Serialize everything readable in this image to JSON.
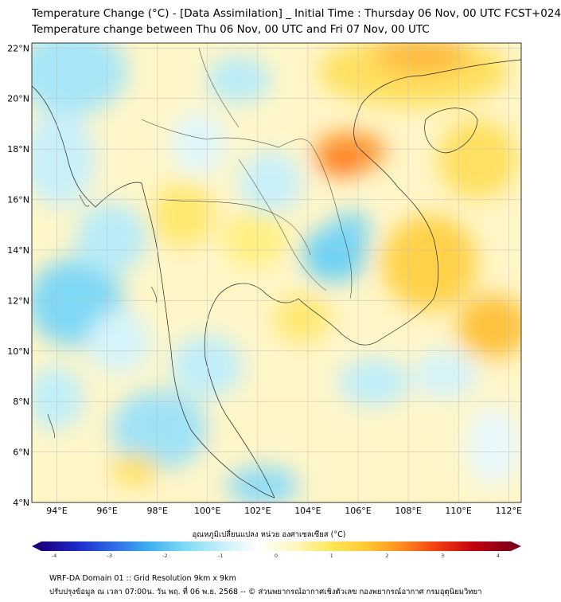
{
  "title": {
    "line1": "Temperature Change (°C) - [Data Assimilation] _ Initial Time : Thursday 06 Nov, 00 UTC FCST+024",
    "line2": "Temperature change between Thu 06 Nov, 00 UTC and Fri 07 Nov, 00 UTC"
  },
  "map": {
    "lat_labels": [
      "22°N",
      "20°N",
      "18°N",
      "16°N",
      "14°N",
      "12°N",
      "10°N",
      "8°N",
      "6°N",
      "4°N"
    ],
    "lat_values": [
      22,
      20,
      18,
      16,
      14,
      12,
      10,
      8,
      6,
      4
    ],
    "lon_labels": [
      "94°E",
      "96°E",
      "98°E",
      "100°E",
      "102°E",
      "104°E",
      "106°E",
      "108°E",
      "110°E",
      "112°E"
    ],
    "lon_values": [
      94,
      96,
      98,
      100,
      102,
      104,
      106,
      108,
      110,
      112
    ],
    "lon_range": [
      93,
      112.5
    ],
    "lat_range": [
      4,
      22.2
    ],
    "grid": true
  },
  "colorbar": {
    "label": "อุณหภูมิเปลี่ยนแปลง หน่วย องศาเซลเซียส (°C)",
    "ticks": [
      "-4",
      "-3",
      "-2",
      "-1",
      "0",
      "1",
      "2",
      "3",
      "4"
    ],
    "range": [
      -4,
      4
    ],
    "colors": [
      "#1a0080",
      "#1d2bc9",
      "#2f6be8",
      "#3fb0f0",
      "#7edcf6",
      "#c8f0fa",
      "#ffffff",
      "#fff7c0",
      "#ffe85a",
      "#ffc832",
      "#ff8a1e",
      "#f03a10",
      "#c00010",
      "#800018"
    ]
  },
  "footer": {
    "line1": "WRF-DA Domain 01 :: Grid Resolution 9km x 9km",
    "line2": "ปรับปรุงข้อมูล ณ เวลา 07:00น. วัน พฤ. ที่ 06 พ.ย. 2568 -- © ส่วนพยากรณ์อากาศเชิงตัวเลข กองพยากรณ์อากาศ กรมอุตุนิยมวิทยา"
  }
}
